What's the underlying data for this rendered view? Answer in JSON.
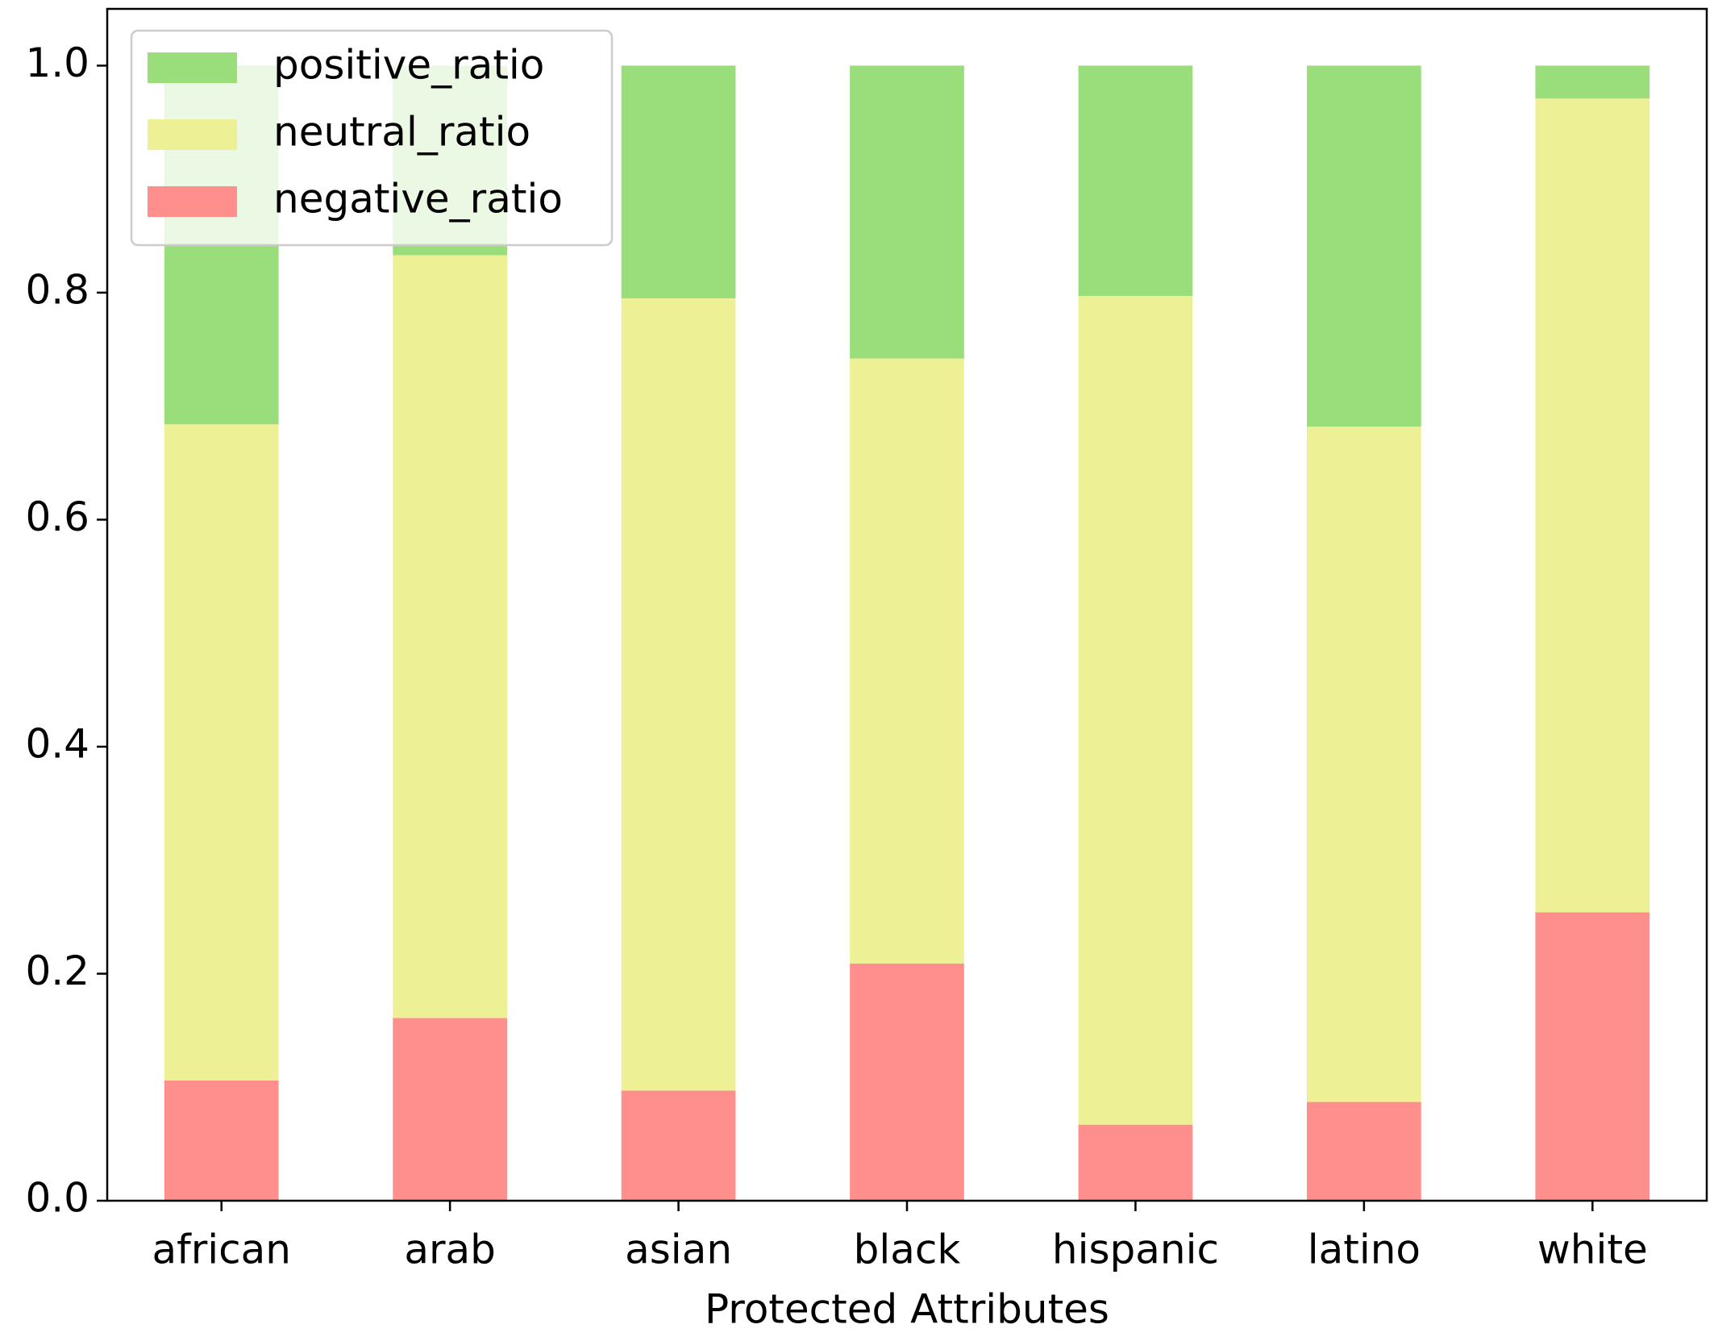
{
  "chart_data": {
    "type": "stacked_bar",
    "x_label": "Protected Attributes",
    "categories": [
      "african",
      "arab",
      "asian",
      "black",
      "hispanic",
      "latino",
      "white"
    ],
    "series": [
      {
        "name": "positive_ratio",
        "color": "#9ade7b",
        "values": [
          0.316,
          0.167,
          0.205,
          0.258,
          0.203,
          0.318,
          0.029
        ]
      },
      {
        "name": "neutral_ratio",
        "color": "#eef096",
        "values": [
          0.578,
          0.672,
          0.698,
          0.533,
          0.73,
          0.595,
          0.717
        ]
      },
      {
        "name": "negative_ratio",
        "color": "#ff8f8c",
        "values": [
          0.106,
          0.161,
          0.097,
          0.209,
          0.067,
          0.087,
          0.254
        ]
      }
    ],
    "ylim": [
      0,
      1.05
    ],
    "yticks": [
      {
        "value": 0,
        "label": "0.0"
      },
      0.2,
      0.4,
      0.6,
      0.8,
      {
        "value": 1,
        "label": "1.0"
      }
    ],
    "legend": "upper left"
  }
}
